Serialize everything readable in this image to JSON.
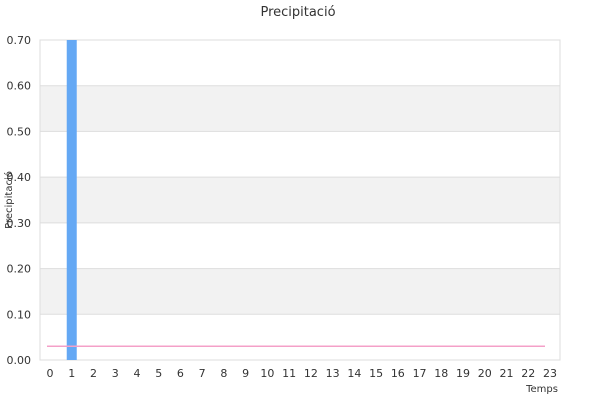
{
  "chart_data": {
    "type": "bar",
    "title": "Precipitació",
    "xlabel": "Temps",
    "ylabel": "Precipitació",
    "categories": [
      "0",
      "1",
      "2",
      "3",
      "4",
      "5",
      "6",
      "7",
      "8",
      "9",
      "10",
      "11",
      "12",
      "13",
      "14",
      "15",
      "16",
      "17",
      "18",
      "19",
      "20",
      "21",
      "22",
      "23"
    ],
    "series": [
      {
        "values": [
          0,
          0.7,
          0,
          0,
          0,
          0,
          0,
          0,
          0,
          0,
          0,
          0,
          0,
          0,
          0,
          0,
          0,
          0,
          0,
          0,
          0,
          0,
          0,
          0
        ],
        "color": "#64a8f4"
      }
    ],
    "threshold": {
      "value": 0.03,
      "color": "#f4a0c8"
    },
    "ylim": [
      0,
      0.7
    ],
    "yticks": [
      "0.00",
      "0.10",
      "0.20",
      "0.30",
      "0.40",
      "0.50",
      "0.60",
      "0.70"
    ],
    "grid": true,
    "band_colors": [
      "#ffffff",
      "#f2f2f2"
    ],
    "legend": "none"
  }
}
